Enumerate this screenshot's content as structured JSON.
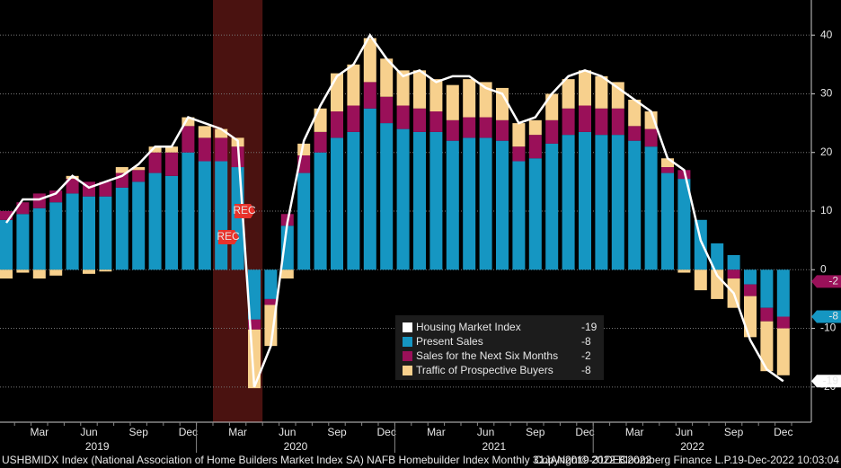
{
  "chart_data": {
    "type": "bar",
    "categories": [
      null,
      null,
      "Mar",
      null,
      null,
      "Jun",
      null,
      null,
      "Sep",
      null,
      null,
      "Dec",
      null,
      null,
      "Mar",
      null,
      null,
      "Jun",
      null,
      null,
      "Sep",
      null,
      null,
      "Dec",
      null,
      null,
      "Mar",
      null,
      null,
      "Jun",
      null,
      null,
      "Sep",
      null,
      null,
      "Dec",
      null,
      null,
      "Mar",
      null,
      null,
      "Jun",
      null,
      null,
      "Sep",
      null,
      null,
      "Dec"
    ],
    "x_groups": [
      "2019",
      "2020",
      "2021",
      "2022"
    ],
    "series": [
      {
        "name": "Housing Market Index",
        "type": "line",
        "color": "#ffffff",
        "values": [
          8,
          12,
          12,
          13,
          16,
          14,
          15,
          16,
          18,
          21,
          21,
          26,
          25,
          24,
          22,
          -20,
          -13,
          8,
          22,
          28,
          33,
          35,
          40,
          36,
          33,
          34,
          32,
          33,
          33,
          31,
          30,
          25,
          26,
          30,
          33,
          34,
          33,
          31,
          29,
          27,
          19,
          17,
          5,
          -1,
          -4,
          -12,
          -17,
          -19
        ]
      },
      {
        "name": "Present Sales",
        "color": "#1596c2",
        "values": [
          8.5,
          9.5,
          10.5,
          11.5,
          13,
          12.5,
          12.5,
          14,
          15,
          16.5,
          16,
          20,
          18.5,
          18.5,
          17.5,
          -8.5,
          -5,
          7.5,
          16.5,
          20,
          22.5,
          23.5,
          27.5,
          25,
          24,
          23.5,
          23.5,
          22,
          22.5,
          22.5,
          22,
          18.5,
          19,
          21.5,
          23,
          23.5,
          23,
          23,
          22,
          21,
          16.5,
          15.5,
          8.5,
          4.5,
          2.5,
          -2.5,
          -6.5,
          -8
        ]
      },
      {
        "name": "Sales for the Next Six Months",
        "color": "#9a1059",
        "values": [
          1.5,
          2,
          2.5,
          2,
          2.5,
          2.5,
          2.5,
          2.5,
          2,
          3.5,
          4,
          4.5,
          4,
          4,
          3.5,
          -1.7,
          -1,
          2,
          3,
          3.5,
          4.5,
          4.5,
          4.5,
          4.5,
          4,
          4,
          3.5,
          3.5,
          3.5,
          3.5,
          3.5,
          2.5,
          4,
          4,
          4.5,
          4.5,
          4.5,
          4.5,
          2.5,
          3,
          1,
          1.5,
          0,
          0,
          -1.5,
          -2,
          -2.3,
          -2
        ]
      },
      {
        "name": "Traffic of Prospective Buyers",
        "color": "#f7d08d",
        "values": [
          -1.5,
          -0.5,
          -1.5,
          -1,
          0.5,
          -0.7,
          -0.3,
          1,
          0.5,
          1,
          1,
          1.5,
          2,
          1.5,
          1.5,
          -10,
          -7,
          -1.5,
          2,
          4,
          6.5,
          7,
          7.5,
          6.5,
          6,
          6.5,
          5.5,
          6,
          6.5,
          6,
          5.5,
          4,
          2.5,
          4.5,
          5,
          6,
          5.5,
          4.5,
          4.5,
          3,
          1.5,
          -0.5,
          -3.5,
          -5,
          -5,
          -7,
          -8.5,
          -8
        ]
      }
    ],
    "ylim": [
      -26,
      46
    ],
    "yticks": [
      -20,
      -10,
      0,
      10,
      20,
      30,
      40
    ],
    "grid": true,
    "recession": [
      13,
      15
    ],
    "annotations": [
      "REC",
      "REC"
    ],
    "footer": [
      "USHBMIDX Index (National Association of Home Builders Market Index SA) NAFB Homebuilder Index  Monthly 31JAN2019-31DEC2022",
      "Copyright© 2022 Bloomberg Finance L.P.",
      "19-Dec-2022 10:03:04"
    ]
  }
}
